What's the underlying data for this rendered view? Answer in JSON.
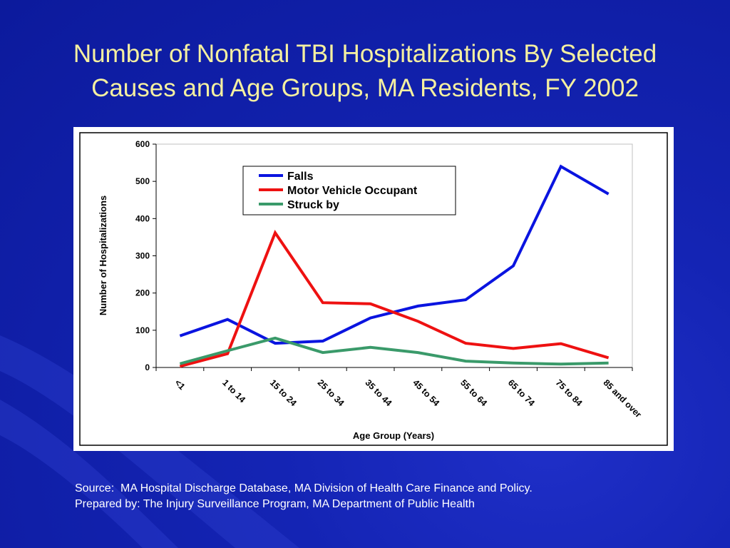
{
  "slide": {
    "title_line1": "Number of Nonfatal TBI Hospitalizations By Selected",
    "title_line2": "Causes and Age Groups, MA Residents, FY 2002",
    "source": "Source:  MA Hospital Discharge Database, MA Division of Health Care Finance and Policy.",
    "prepared_by": "Prepared by: The Injury Surveillance Program, MA Department of Public Health"
  },
  "colors": {
    "background": "#1424b4",
    "title": "#f5f0a0",
    "falls": "#0a14e0",
    "motor_vehicle": "#ee1111",
    "struck_by": "#3a9a6a"
  },
  "chart_data": {
    "type": "line",
    "xlabel": "Age Group (Years)",
    "ylabel": "Number of Hospitalizations",
    "ylim": [
      0,
      600
    ],
    "yticks": [
      "0",
      "100",
      "200",
      "300",
      "400",
      "500",
      "600"
    ],
    "grid": false,
    "legend_position": "top-center",
    "categories": [
      "<1",
      "1 to 14",
      "15 to 24",
      "25 to 34",
      "35 to 44",
      "45 to 54",
      "55 to 64",
      "65 to 74",
      "75 to 84",
      "85 and over"
    ],
    "series": [
      {
        "name": "Falls",
        "color": "#0a14e0",
        "values": [
          85,
          129,
          65,
          71,
          133,
          165,
          182,
          273,
          540,
          466
        ]
      },
      {
        "name": "Motor Vehicle Occupant",
        "color": "#ee1111",
        "values": [
          3,
          37,
          362,
          174,
          171,
          124,
          65,
          51,
          64,
          26
        ]
      },
      {
        "name": "Struck by",
        "color": "#3a9a6a",
        "values": [
          10,
          45,
          79,
          40,
          54,
          40,
          17,
          12,
          9,
          12
        ]
      }
    ]
  }
}
